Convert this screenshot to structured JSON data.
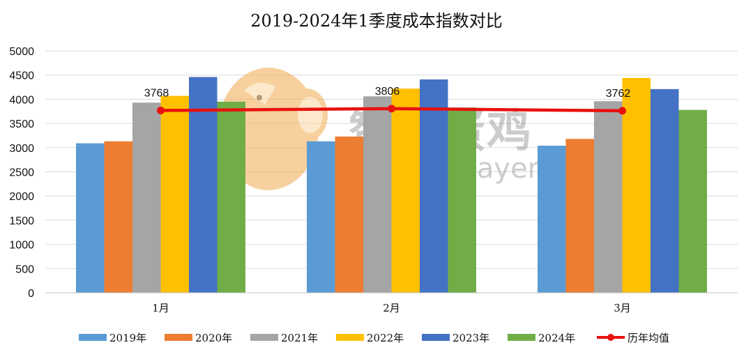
{
  "chart_data": {
    "type": "bar",
    "title": "2019-2024年1季度成本指数对比",
    "categories": [
      "1月",
      "2月",
      "3月"
    ],
    "ylim": [
      0,
      5000
    ],
    "yticks": [
      0,
      500,
      1000,
      1500,
      2000,
      2500,
      3000,
      3500,
      4000,
      4500,
      5000
    ],
    "grid": true,
    "legend_position": "bottom",
    "series": [
      {
        "name": "2019年",
        "color": "#5B9BD5",
        "values": [
          3090,
          3130,
          3040
        ]
      },
      {
        "name": "2020年",
        "color": "#ED7D31",
        "values": [
          3130,
          3230,
          3180
        ]
      },
      {
        "name": "2021年",
        "color": "#A5A5A5",
        "values": [
          3930,
          4060,
          3960
        ]
      },
      {
        "name": "2022年",
        "color": "#FFC000",
        "values": [
          4070,
          4220,
          4440
        ]
      },
      {
        "name": "2023年",
        "color": "#4472C4",
        "values": [
          4460,
          4410,
          4210
        ]
      },
      {
        "name": "2024年",
        "color": "#70AD47",
        "values": [
          3950,
          3830,
          3780
        ]
      }
    ],
    "line_series": {
      "name": "历年均值",
      "color": "#E8110F",
      "values": [
        3768,
        3806,
        3762
      ],
      "labels": [
        "3768",
        "3806",
        "3762"
      ]
    }
  },
  "watermark": {
    "text_cn": "智慧蛋鸡",
    "text_en": "Smarter layer",
    "logo_color": "#F2B15F"
  }
}
